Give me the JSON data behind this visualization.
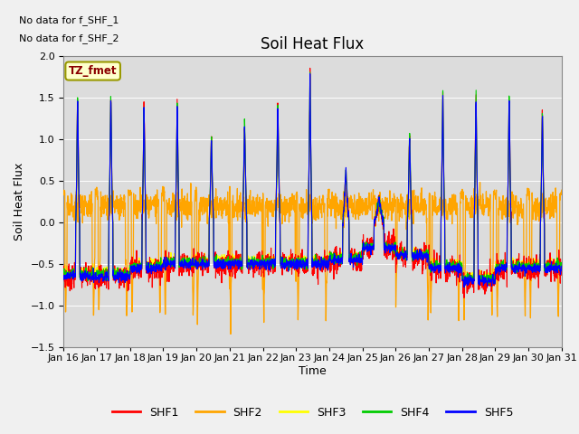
{
  "title": "Soil Heat Flux",
  "xlabel": "Time",
  "ylabel": "Soil Heat Flux",
  "ylim": [
    -1.5,
    2.0
  ],
  "yticks": [
    -1.5,
    -1.0,
    -0.5,
    0.0,
    0.5,
    1.0,
    1.5,
    2.0
  ],
  "date_labels": [
    "Jan 16",
    "Jan 17",
    "Jan 18",
    "Jan 19",
    "Jan 20",
    "Jan 21",
    "Jan 22",
    "Jan 23",
    "Jan 24",
    "Jan 25",
    "Jan 26",
    "Jan 27",
    "Jan 28",
    "Jan 29",
    "Jan 30",
    "Jan 31"
  ],
  "no_data_text": [
    "No data for f_SHF_1",
    "No data for f_SHF_2"
  ],
  "tz_label": "TZ_fmet",
  "legend_labels": [
    "SHF1",
    "SHF2",
    "SHF3",
    "SHF4",
    "SHF5"
  ],
  "legend_colors": [
    "#ff0000",
    "#ffa500",
    "#ffff00",
    "#00cc00",
    "#0000ff"
  ],
  "fig_bg_color": "#f0f0f0",
  "plot_bg_color": "#dcdcdc",
  "grid_color": "#ffffff",
  "title_fontsize": 12,
  "axis_fontsize": 9,
  "tick_fontsize": 8,
  "n_days": 15,
  "n_per_day": 144,
  "day_peak_amplitudes": [
    1.6,
    1.6,
    1.45,
    1.5,
    1.07,
    1.25,
    1.5,
    1.8,
    0.65,
    0.3,
    1.07,
    1.6,
    1.6,
    1.6,
    1.4
  ],
  "day_peak_widths": [
    0.06,
    0.06,
    0.06,
    0.06,
    0.07,
    0.07,
    0.07,
    0.06,
    0.1,
    0.15,
    0.07,
    0.06,
    0.06,
    0.06,
    0.06
  ],
  "day_peak_centers": [
    0.42,
    0.42,
    0.42,
    0.42,
    0.45,
    0.45,
    0.45,
    0.42,
    0.5,
    0.5,
    0.42,
    0.42,
    0.42,
    0.42,
    0.42
  ],
  "night_base": [
    -0.65,
    -0.65,
    -0.55,
    -0.5,
    -0.5,
    -0.5,
    -0.5,
    -0.5,
    -0.45,
    -0.3,
    -0.4,
    -0.55,
    -0.7,
    -0.55,
    -0.55
  ]
}
